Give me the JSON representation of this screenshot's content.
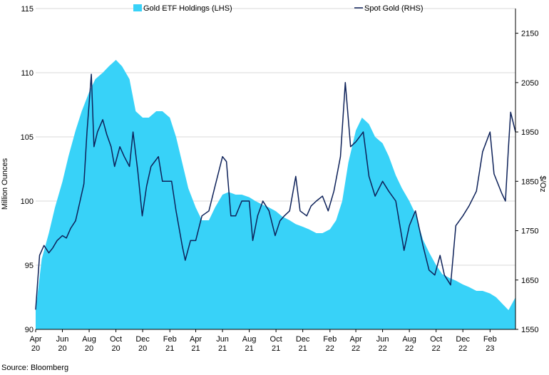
{
  "chart_data": {
    "type": "area",
    "source": "Source: Bloomberg",
    "legend": {
      "area_label": "Gold ETF Holdings (LHS)",
      "line_label": "Spot Gold (RHS)",
      "placement": "top-center"
    },
    "left_axis": {
      "title": "Million Ounces",
      "range": [
        90,
        115
      ],
      "ticks": [
        90,
        95,
        100,
        105,
        110,
        115
      ],
      "tick_labels": [
        "90",
        "95",
        "100",
        "105",
        "110",
        "115"
      ]
    },
    "right_axis": {
      "title": "$/Oz",
      "range": [
        1550,
        2200
      ],
      "ticks": [
        1550,
        1650,
        1750,
        1850,
        1950,
        2050,
        2150
      ],
      "tick_labels": [
        "1550",
        "1650",
        "1750",
        "1850",
        "1950",
        "2050",
        "2150"
      ]
    },
    "x_axis": {
      "start": "2020-04-01",
      "end": "2023-03-31",
      "tick_dates": [
        "2020-04-01",
        "2020-06-01",
        "2020-08-01",
        "2020-10-01",
        "2020-12-01",
        "2021-02-01",
        "2021-04-01",
        "2021-06-01",
        "2021-08-01",
        "2021-10-01",
        "2021-12-01",
        "2022-02-01",
        "2022-04-01",
        "2022-06-01",
        "2022-08-01",
        "2022-10-01",
        "2022-12-01",
        "2023-02-01"
      ],
      "tick_labels": [
        [
          "Apr",
          "20"
        ],
        [
          "Jun",
          "20"
        ],
        [
          "Aug",
          "20"
        ],
        [
          "Oct",
          "20"
        ],
        [
          "Dec",
          "20"
        ],
        [
          "Feb",
          "21"
        ],
        [
          "Apr",
          "21"
        ],
        [
          "Jun",
          "21"
        ],
        [
          "Aug",
          "21"
        ],
        [
          "Oct",
          "21"
        ],
        [
          "Dec",
          "21"
        ],
        [
          "Feb",
          "22"
        ],
        [
          "Apr",
          "22"
        ],
        [
          "Jun",
          "22"
        ],
        [
          "Aug",
          "22"
        ],
        [
          "Oct",
          "22"
        ],
        [
          "Dec",
          "22"
        ],
        [
          "Feb",
          "23"
        ]
      ]
    },
    "grid": {
      "horizontal": true,
      "color": "#d9d9d9"
    },
    "colors": {
      "area": "#38d2f8",
      "line": "#0d2159"
    },
    "series": [
      {
        "name": "Gold ETF Holdings (LHS)",
        "axis": "left",
        "x": [
          "2020-04-01",
          "2020-04-15",
          "2020-05-01",
          "2020-05-15",
          "2020-06-01",
          "2020-06-15",
          "2020-07-01",
          "2020-07-15",
          "2020-08-01",
          "2020-08-15",
          "2020-09-01",
          "2020-09-15",
          "2020-10-01",
          "2020-10-15",
          "2020-11-01",
          "2020-11-15",
          "2020-12-01",
          "2020-12-15",
          "2021-01-01",
          "2021-01-15",
          "2021-02-01",
          "2021-02-15",
          "2021-03-01",
          "2021-03-15",
          "2021-04-01",
          "2021-04-15",
          "2021-05-01",
          "2021-05-15",
          "2021-06-01",
          "2021-06-15",
          "2021-07-01",
          "2021-07-15",
          "2021-08-01",
          "2021-08-15",
          "2021-09-01",
          "2021-09-15",
          "2021-10-01",
          "2021-10-15",
          "2021-11-01",
          "2021-11-15",
          "2021-12-01",
          "2021-12-15",
          "2022-01-01",
          "2022-01-15",
          "2022-02-01",
          "2022-02-15",
          "2022-03-01",
          "2022-03-15",
          "2022-04-01",
          "2022-04-15",
          "2022-05-01",
          "2022-05-15",
          "2022-06-01",
          "2022-06-15",
          "2022-07-01",
          "2022-07-15",
          "2022-08-01",
          "2022-08-15",
          "2022-09-01",
          "2022-09-15",
          "2022-10-01",
          "2022-10-15",
          "2022-11-01",
          "2022-11-15",
          "2022-12-01",
          "2022-12-15",
          "2023-01-01",
          "2023-01-15",
          "2023-02-01",
          "2023-02-15",
          "2023-03-01",
          "2023-03-15",
          "2023-03-31"
        ],
        "values": [
          91.5,
          95.5,
          97.5,
          99.5,
          101.5,
          103.5,
          105.5,
          107.0,
          108.5,
          109.5,
          110.0,
          110.5,
          111.0,
          110.5,
          109.5,
          107.0,
          106.5,
          106.5,
          107.0,
          107.0,
          106.5,
          105.0,
          103.0,
          101.0,
          99.5,
          98.5,
          98.5,
          99.5,
          100.5,
          100.7,
          100.5,
          100.5,
          100.3,
          100.0,
          99.7,
          99.5,
          99.2,
          98.8,
          98.5,
          98.2,
          98.0,
          97.8,
          97.5,
          97.5,
          97.8,
          98.5,
          100.0,
          103.0,
          105.5,
          106.5,
          106.0,
          105.0,
          104.5,
          103.5,
          102.0,
          101.0,
          100.0,
          99.0,
          97.0,
          96.0,
          95.0,
          94.3,
          94.0,
          93.8,
          93.5,
          93.3,
          93.0,
          93.0,
          92.8,
          92.5,
          92.0,
          91.5,
          92.5
        ]
      },
      {
        "name": "Spot Gold (RHS)",
        "axis": "right",
        "x": [
          "2020-04-01",
          "2020-04-10",
          "2020-04-20",
          "2020-05-01",
          "2020-05-10",
          "2020-05-20",
          "2020-06-01",
          "2020-06-10",
          "2020-06-20",
          "2020-07-01",
          "2020-07-10",
          "2020-07-20",
          "2020-07-27",
          "2020-08-06",
          "2020-08-12",
          "2020-08-20",
          "2020-09-01",
          "2020-09-10",
          "2020-09-20",
          "2020-09-28",
          "2020-10-10",
          "2020-10-20",
          "2020-11-01",
          "2020-11-09",
          "2020-11-20",
          "2020-11-30",
          "2020-12-10",
          "2020-12-20",
          "2021-01-06",
          "2021-01-15",
          "2021-01-25",
          "2021-02-05",
          "2021-02-15",
          "2021-03-01",
          "2021-03-08",
          "2021-03-20",
          "2021-04-01",
          "2021-04-15",
          "2021-05-01",
          "2021-05-15",
          "2021-06-01",
          "2021-06-10",
          "2021-06-20",
          "2021-07-01",
          "2021-07-15",
          "2021-08-01",
          "2021-08-09",
          "2021-08-20",
          "2021-09-01",
          "2021-09-15",
          "2021-09-29",
          "2021-10-10",
          "2021-10-20",
          "2021-11-01",
          "2021-11-15",
          "2021-11-25",
          "2021-12-10",
          "2021-12-20",
          "2022-01-01",
          "2022-01-15",
          "2022-01-28",
          "2022-02-10",
          "2022-02-25",
          "2022-03-08",
          "2022-03-20",
          "2022-04-01",
          "2022-04-18",
          "2022-05-01",
          "2022-05-15",
          "2022-06-01",
          "2022-06-15",
          "2022-07-01",
          "2022-07-20",
          "2022-08-01",
          "2022-08-15",
          "2022-09-01",
          "2022-09-15",
          "2022-09-28",
          "2022-10-10",
          "2022-10-20",
          "2022-11-03",
          "2022-11-15",
          "2022-12-01",
          "2022-12-15",
          "2023-01-01",
          "2023-01-15",
          "2023-02-01",
          "2023-02-10",
          "2023-02-28",
          "2023-03-08",
          "2023-03-15",
          "2023-03-20",
          "2023-03-31"
        ],
        "values": [
          1590,
          1700,
          1720,
          1705,
          1715,
          1730,
          1740,
          1735,
          1755,
          1770,
          1805,
          1845,
          1950,
          2067,
          1920,
          1950,
          1975,
          1945,
          1920,
          1880,
          1920,
          1900,
          1880,
          1950,
          1870,
          1780,
          1840,
          1880,
          1900,
          1850,
          1850,
          1850,
          1790,
          1720,
          1690,
          1730,
          1730,
          1780,
          1790,
          1840,
          1900,
          1890,
          1780,
          1780,
          1810,
          1810,
          1730,
          1780,
          1810,
          1790,
          1740,
          1770,
          1780,
          1790,
          1860,
          1790,
          1780,
          1800,
          1810,
          1820,
          1790,
          1830,
          1900,
          2050,
          1920,
          1930,
          1950,
          1860,
          1820,
          1850,
          1830,
          1810,
          1710,
          1760,
          1790,
          1720,
          1670,
          1660,
          1700,
          1660,
          1640,
          1760,
          1780,
          1800,
          1830,
          1910,
          1950,
          1865,
          1825,
          1810,
          1920,
          1990,
          1950
        ]
      }
    ]
  }
}
